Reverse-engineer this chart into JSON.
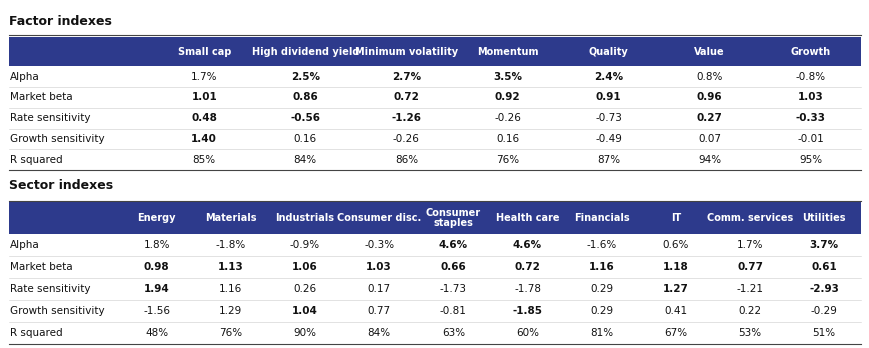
{
  "factor_title": "Factor indexes",
  "factor_headers": [
    "",
    "Small cap",
    "High dividend yield",
    "Minimum volatility",
    "Momentum",
    "Quality",
    "Value",
    "Growth"
  ],
  "factor_rows": [
    [
      "Alpha",
      "1.7%",
      "2.5%",
      "2.7%",
      "3.5%",
      "2.4%",
      "0.8%",
      "-0.8%"
    ],
    [
      "Market beta",
      "1.01",
      "0.86",
      "0.72",
      "0.92",
      "0.91",
      "0.96",
      "1.03"
    ],
    [
      "Rate sensitivity",
      "0.48",
      "-0.56",
      "-1.26",
      "-0.26",
      "-0.73",
      "0.27",
      "-0.33"
    ],
    [
      "Growth sensitivity",
      "1.40",
      "0.16",
      "-0.26",
      "0.16",
      "-0.49",
      "0.07",
      "-0.01"
    ],
    [
      "R squared",
      "85%",
      "84%",
      "86%",
      "76%",
      "87%",
      "94%",
      "95%"
    ]
  ],
  "factor_bold_cols_by_row": {
    "0": [
      2,
      3,
      4,
      5
    ],
    "1": [
      1,
      2,
      3,
      4,
      5,
      6,
      7
    ],
    "2": [
      1,
      2,
      3,
      6,
      7
    ],
    "3": [
      1
    ],
    "4": []
  },
  "sector_title": "Sector indexes",
  "sector_headers": [
    "",
    "Energy",
    "Materials",
    "Industrials",
    "Consumer disc.",
    "Consumer\nstaples",
    "Health care",
    "Financials",
    "IT",
    "Comm. services",
    "Utilities"
  ],
  "sector_rows": [
    [
      "Alpha",
      "1.8%",
      "-1.8%",
      "-0.9%",
      "-0.3%",
      "4.6%",
      "4.6%",
      "-1.6%",
      "0.6%",
      "1.7%",
      "3.7%"
    ],
    [
      "Market beta",
      "0.98",
      "1.13",
      "1.06",
      "1.03",
      "0.66",
      "0.72",
      "1.16",
      "1.18",
      "0.77",
      "0.61"
    ],
    [
      "Rate sensitivity",
      "1.94",
      "1.16",
      "0.26",
      "0.17",
      "-1.73",
      "-1.78",
      "0.29",
      "1.27",
      "-1.21",
      "-2.93"
    ],
    [
      "Growth sensitivity",
      "-1.56",
      "1.29",
      "1.04",
      "0.77",
      "-0.81",
      "-1.85",
      "0.29",
      "0.41",
      "0.22",
      "-0.29"
    ],
    [
      "R squared",
      "48%",
      "76%",
      "90%",
      "84%",
      "63%",
      "60%",
      "81%",
      "67%",
      "53%",
      "51%"
    ]
  ],
  "sector_bold_cols_by_row": {
    "0": [
      5,
      6,
      10
    ],
    "1": [
      1,
      2,
      3,
      4,
      5,
      6,
      7,
      8,
      9,
      10
    ],
    "2": [
      1,
      8,
      10
    ],
    "3": [
      3,
      6
    ],
    "4": []
  },
  "header_bg": "#2d3a8c",
  "header_fg": "#ffffff",
  "title_fontsize": 9,
  "header_fontsize": 7,
  "cell_fontsize": 7.5,
  "bg_color": "#ffffff"
}
